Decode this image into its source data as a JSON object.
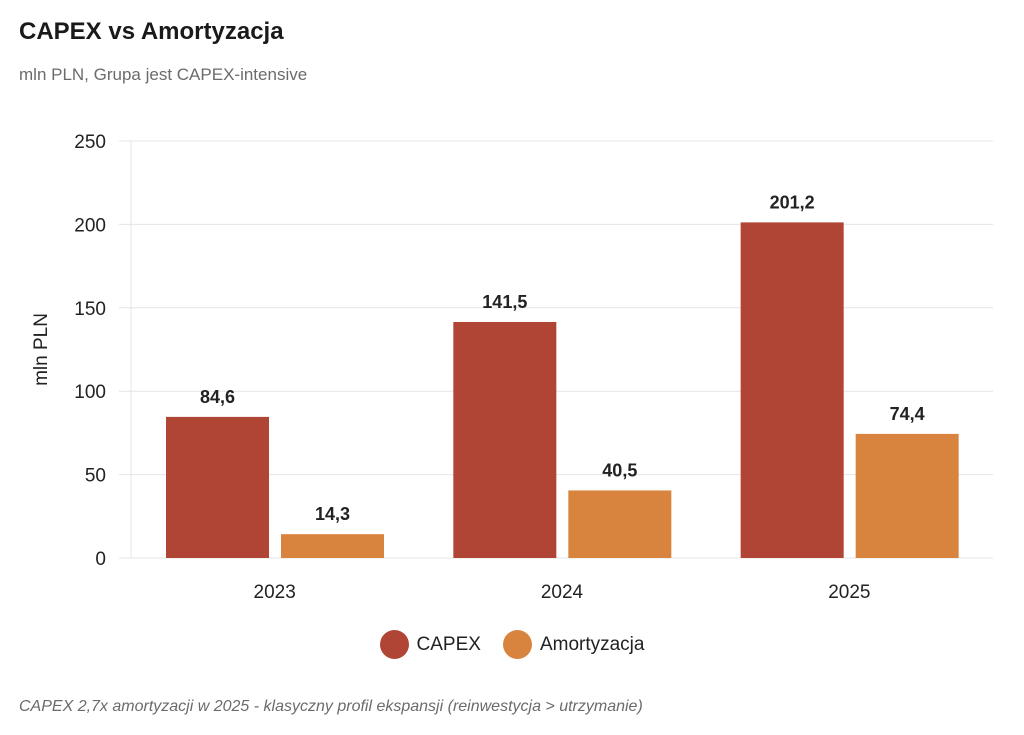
{
  "chart_data": {
    "type": "bar",
    "title": "CAPEX vs Amortyzacja",
    "subtitle": "mln PLN, Grupa jest CAPEX-intensive",
    "xlabel": "",
    "ylabel": "mln PLN",
    "ylim": [
      0,
      250
    ],
    "yticks": [
      0,
      50,
      100,
      150,
      200,
      250
    ],
    "grid": true,
    "legend_position": "bottom",
    "categories": [
      "2023",
      "2024",
      "2025"
    ],
    "series": [
      {
        "name": "CAPEX",
        "values": [
          84.6,
          141.5,
          201.2
        ],
        "labels": [
          "84,6",
          "141,5",
          "201,2"
        ],
        "color": "#B04435"
      },
      {
        "name": "Amortyzacja",
        "values": [
          14.3,
          40.5,
          74.4
        ],
        "labels": [
          "14,3",
          "40,5",
          "74,4"
        ],
        "color": "#D8843E"
      }
    ],
    "annotation": "CAPEX 2,7x amortyzacji w 2025 - klasyczny profil ekspansji (reinwestycja > utrzymanie)"
  }
}
